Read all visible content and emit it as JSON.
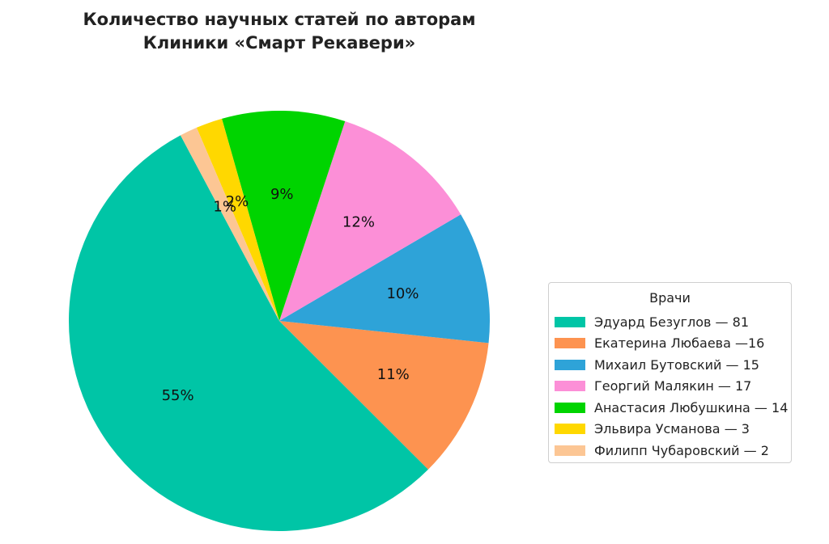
{
  "chart_data": {
    "type": "pie",
    "title_lines": [
      "Количество научных статей по авторам",
      "Клиники «Смарт Рекавери»"
    ],
    "legend_title": "Врачи",
    "legend_position": "right",
    "slices": [
      {
        "label": "Эдуард Безуглов — 81",
        "value": 81,
        "pct_label": "55%",
        "color": "#00c5a6"
      },
      {
        "label": "Екатерина Любаева —16",
        "value": 16,
        "pct_label": "11%",
        "color": "#fd9350"
      },
      {
        "label": "Михаил Бутовский — 15",
        "value": 15,
        "pct_label": "10%",
        "color": "#2ea3d8"
      },
      {
        "label": "Георгий Малякин — 17",
        "value": 17,
        "pct_label": "12%",
        "color": "#fc8fd7"
      },
      {
        "label": "Анастасия Любушкина — 14",
        "value": 14,
        "pct_label": "9%",
        "color": "#00d400"
      },
      {
        "label": "Эльвира Усманова — 3",
        "value": 3,
        "pct_label": "2%",
        "color": "#ffd800"
      },
      {
        "label": "Филипп Чубаровский — 2",
        "value": 2,
        "pct_label": "1%",
        "color": "#fcc694"
      }
    ]
  }
}
